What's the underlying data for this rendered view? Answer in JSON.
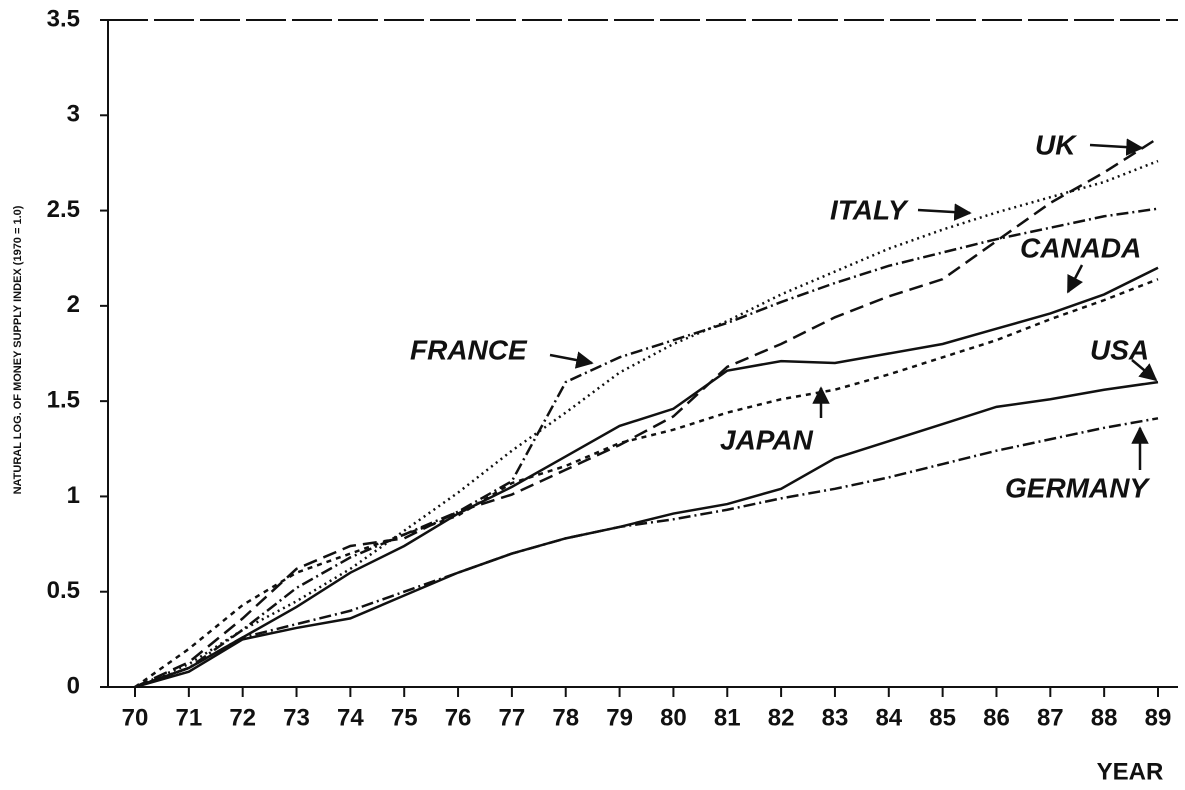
{
  "chart_data": {
    "type": "line",
    "y_label": "NATURAL LOG. OF MONEY SUPPLY INDEX (1970 = 1.0)",
    "x_label": "YEAR",
    "categories": [
      "70",
      "71",
      "72",
      "73",
      "74",
      "75",
      "76",
      "77",
      "78",
      "79",
      "80",
      "81",
      "82",
      "83",
      "84",
      "85",
      "86",
      "87",
      "88",
      "89"
    ],
    "ylim": [
      0,
      3.5
    ],
    "yticks": [
      0,
      0.5,
      1,
      1.5,
      2,
      2.5,
      3,
      3.5
    ],
    "grid": false,
    "series": [
      {
        "name": "UK",
        "color": "#111111",
        "dash": "dashed",
        "values": [
          0,
          0.13,
          0.36,
          0.62,
          0.74,
          0.78,
          0.92,
          1.01,
          1.14,
          1.27,
          1.42,
          1.68,
          1.8,
          1.94,
          2.05,
          2.14,
          2.34,
          2.54,
          2.7,
          2.88
        ]
      },
      {
        "name": "ITALY",
        "color": "#111111",
        "dash": "dotted",
        "values": [
          0,
          0.12,
          0.3,
          0.45,
          0.62,
          0.82,
          1.02,
          1.24,
          1.44,
          1.65,
          1.8,
          1.92,
          2.06,
          2.18,
          2.3,
          2.4,
          2.49,
          2.57,
          2.65,
          2.76
        ]
      },
      {
        "name": "CANADA",
        "color": "#111111",
        "dash": "solid",
        "values": [
          0,
          0.1,
          0.26,
          0.42,
          0.6,
          0.74,
          0.91,
          1.05,
          1.21,
          1.37,
          1.46,
          1.66,
          1.71,
          1.7,
          1.75,
          1.8,
          1.88,
          1.96,
          2.06,
          2.2
        ]
      },
      {
        "name": "FRANCE",
        "color": "#111111",
        "dash": "dashdot",
        "values": [
          0,
          0.1,
          0.3,
          0.52,
          0.68,
          0.8,
          0.92,
          1.08,
          1.6,
          1.73,
          1.82,
          1.91,
          2.02,
          2.12,
          2.21,
          2.28,
          2.35,
          2.41,
          2.47,
          2.51
        ]
      },
      {
        "name": "USA",
        "color": "#111111",
        "dash": "solid",
        "values": [
          0,
          0.08,
          0.25,
          0.31,
          0.36,
          0.48,
          0.6,
          0.7,
          0.78,
          0.84,
          0.91,
          0.96,
          1.04,
          1.2,
          1.29,
          1.38,
          1.47,
          1.51,
          1.56,
          1.6
        ]
      },
      {
        "name": "JAPAN",
        "color": "#111111",
        "dash": "shortdash",
        "values": [
          0,
          0.2,
          0.43,
          0.6,
          0.7,
          0.8,
          0.9,
          1.07,
          1.16,
          1.28,
          1.35,
          1.44,
          1.51,
          1.56,
          1.64,
          1.73,
          1.82,
          1.93,
          2.03,
          2.14
        ]
      },
      {
        "name": "GERMANY",
        "color": "#111111",
        "dash": "dashdot",
        "values": [
          0,
          0.1,
          0.26,
          0.33,
          0.4,
          0.5,
          0.6,
          0.7,
          0.78,
          0.84,
          0.88,
          0.93,
          0.99,
          1.04,
          1.1,
          1.17,
          1.24,
          1.3,
          1.36,
          1.41
        ]
      }
    ]
  }
}
